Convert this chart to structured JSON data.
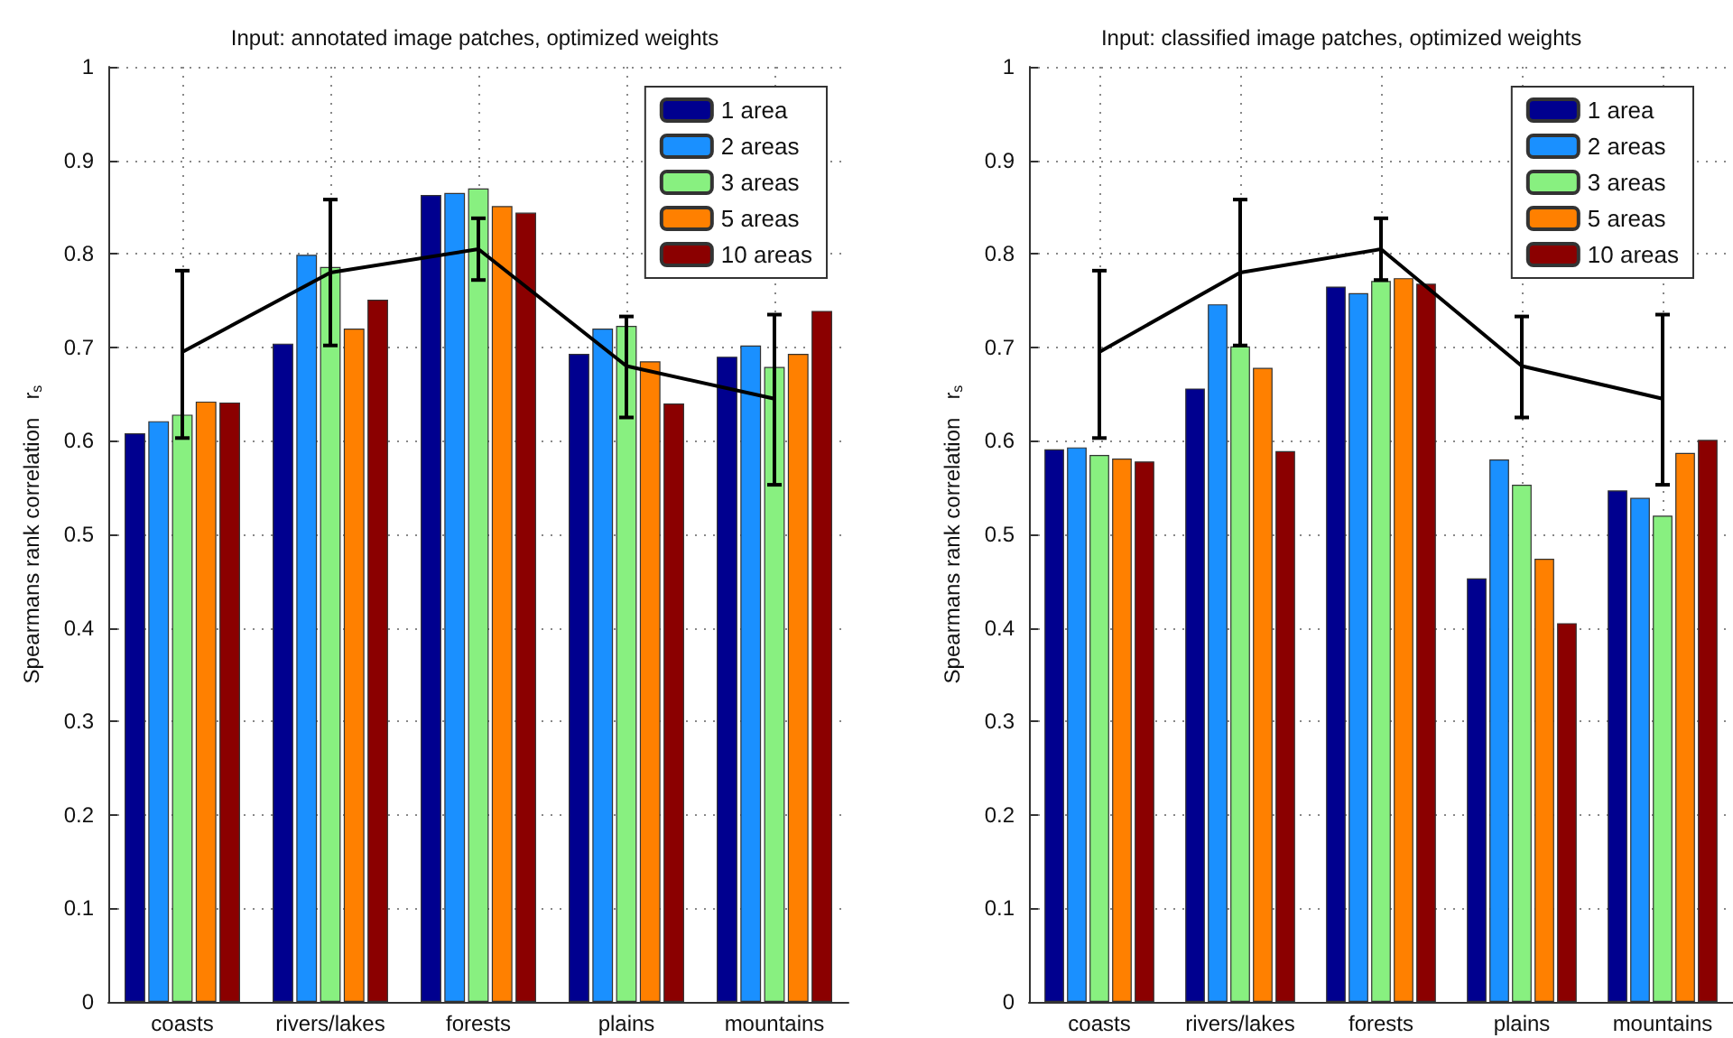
{
  "chart_data": [
    {
      "type": "bar",
      "title": "Input: annotated image patches, optimized weights",
      "ylabel": "Spearmans rank correlation   r$_{s}$",
      "categories": [
        "coasts",
        "rivers/lakes",
        "forests",
        "plains",
        "mountains"
      ],
      "ylim": [
        0,
        1
      ],
      "yticks": [
        0,
        0.1,
        0.2,
        0.3,
        0.4,
        0.5,
        0.6,
        0.7,
        0.8,
        0.9,
        1
      ],
      "grid": true,
      "legend": "top right",
      "series": [
        {
          "name": "1 area",
          "color": "#00008f",
          "values": [
            0.608,
            0.704,
            0.863,
            0.693,
            0.69
          ]
        },
        {
          "name": "2 areas",
          "color": "#1a90ff",
          "values": [
            0.621,
            0.799,
            0.865,
            0.72,
            0.702
          ]
        },
        {
          "name": "3 areas",
          "color": "#88f080",
          "values": [
            0.628,
            0.786,
            0.87,
            0.723,
            0.679
          ]
        },
        {
          "name": "5 areas",
          "color": "#ff8000",
          "values": [
            0.642,
            0.72,
            0.851,
            0.685,
            0.693
          ]
        },
        {
          "name": "10 areas",
          "color": "#8b0000",
          "values": [
            0.641,
            0.751,
            0.844,
            0.64,
            0.739
          ]
        },
        {
          "type": "line",
          "color": "#000000",
          "values": [
            0.695,
            0.78,
            0.805,
            0.68,
            0.645
          ],
          "errors": [
            [
              0.603,
              0.782
            ],
            [
              0.702,
              0.858
            ],
            [
              0.772,
              0.838
            ],
            [
              0.625,
              0.733
            ],
            [
              0.553,
              0.735
            ]
          ]
        }
      ]
    },
    {
      "type": "bar",
      "title": "Input: classified image patches, optimized weights",
      "ylabel": "Spearmans rank correlation   r$_{s}$",
      "categories": [
        "coasts",
        "rivers/lakes",
        "forests",
        "plains",
        "mountains"
      ],
      "ylim": [
        0,
        1
      ],
      "yticks": [
        0,
        0.1,
        0.2,
        0.3,
        0.4,
        0.5,
        0.6,
        0.7,
        0.8,
        0.9,
        1
      ],
      "grid": true,
      "legend": "top right",
      "series": [
        {
          "name": "1 area",
          "color": "#00008f",
          "values": [
            0.591,
            0.656,
            0.765,
            0.453,
            0.547
          ]
        },
        {
          "name": "2 areas",
          "color": "#1a90ff",
          "values": [
            0.593,
            0.746,
            0.758,
            0.58,
            0.539
          ]
        },
        {
          "name": "3 areas",
          "color": "#88f080",
          "values": [
            0.585,
            0.701,
            0.771,
            0.553,
            0.52
          ]
        },
        {
          "name": "5 areas",
          "color": "#ff8000",
          "values": [
            0.581,
            0.678,
            0.774,
            0.474,
            0.587
          ]
        },
        {
          "name": "10 areas",
          "color": "#8b0000",
          "values": [
            0.578,
            0.589,
            0.768,
            0.405,
            0.601
          ]
        },
        {
          "type": "line",
          "color": "#000000",
          "values": [
            0.695,
            0.78,
            0.805,
            0.68,
            0.645
          ],
          "errors": [
            [
              0.603,
              0.782
            ],
            [
              0.702,
              0.858
            ],
            [
              0.772,
              0.838
            ],
            [
              0.625,
              0.733
            ],
            [
              0.553,
              0.735
            ]
          ]
        }
      ]
    }
  ]
}
